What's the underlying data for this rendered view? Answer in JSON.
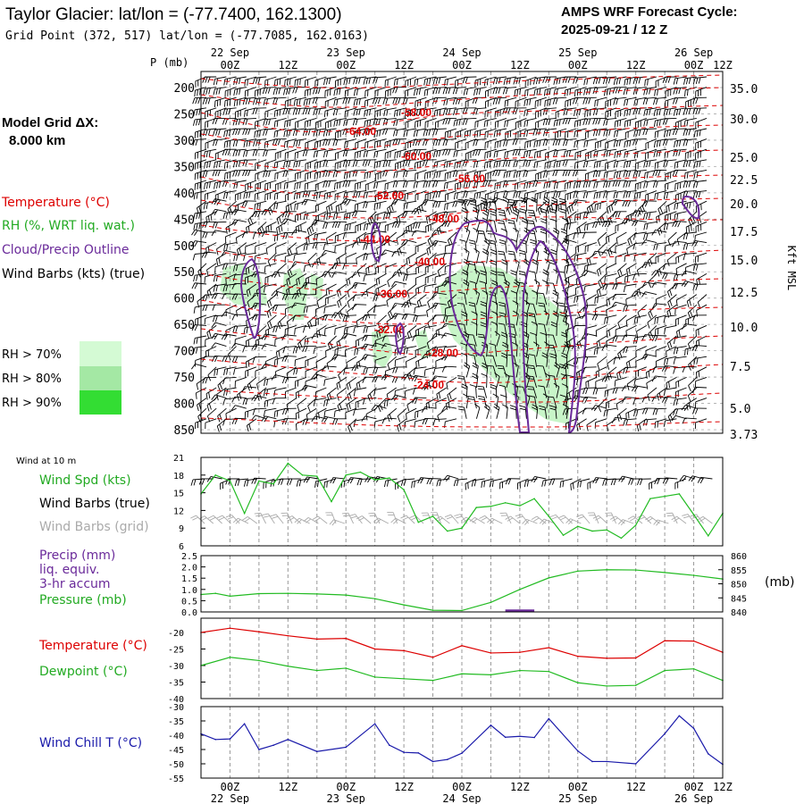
{
  "header": {
    "title": "Taylor Glacier:  lat/lon = (-77.7400, 162.1300)",
    "subtitle": "Grid Point (372, 517) lat/lon = (-77.7085, 162.0163)",
    "cycle_line1": "AMPS WRF Forecast Cycle:",
    "cycle_line2": "2025-09-21 / 12  Z"
  },
  "model_grid": {
    "label": "Model Grid ΔX:",
    "value": "8.000 km"
  },
  "legend": {
    "temperature": "Temperature (°C)",
    "rh": "RH (%, WRT liq. wat.)",
    "cloud": "Cloud/Precip Outline",
    "wind": "Wind Barbs (kts) (true)",
    "rh70": "RH > 70%",
    "rh80": "RH > 80%",
    "rh90": "RH > 90%"
  },
  "colors": {
    "temperature": "#dd0000",
    "rh_fill": "#c8f5c8",
    "rh70": "#d4fad4",
    "rh80": "#a4e8a4",
    "rh90": "#33dd33",
    "cloud": "#6a2a9a",
    "wind_speed": "#22bb22",
    "pressure": "#22bb22",
    "precip": "#6a2a9a",
    "dewpoint": "#22bb22",
    "wind_chill": "#1a1aaa",
    "grid_barbs": "#aaaaaa"
  },
  "time_axis": {
    "day_labels": [
      "22 Sep",
      "23 Sep",
      "24 Sep",
      "25 Sep",
      "26 Sep"
    ],
    "tick_labels": [
      "00Z",
      "12Z",
      "00Z",
      "12Z",
      "00Z",
      "12Z",
      "00Z",
      "12Z",
      "00Z",
      "12Z"
    ],
    "p_label": "P (mb)"
  },
  "chart_data": [
    {
      "type": "contour",
      "name": "upper-air time-height section",
      "ylabel": "P (mb)",
      "pressure_ticks": [
        "200",
        "250",
        "300",
        "350",
        "400",
        "450",
        "500",
        "550",
        "600",
        "650",
        "700",
        "750",
        "800",
        "850"
      ],
      "height_axis_label": "Kft MSL",
      "height_ticks": [
        "35.0",
        "30.0",
        "25.0",
        "22.5",
        "20.0",
        "17.5",
        "15.0",
        "12.5",
        "10.0",
        "7.5",
        "5.0",
        "3.73"
      ],
      "temperature_contour_labels": [
        "-58.00",
        "-64.00",
        "-60.00",
        "-56.00",
        "-52.00",
        "-48.00",
        "-44.00",
        "-40.00",
        "-36.00",
        "-32.00",
        "-28.00",
        "-24.00"
      ]
    },
    {
      "type": "line",
      "name": "Wind at 10 m",
      "title": "Wind at 10 m",
      "series_labels": [
        "Wind Spd (kts)",
        "Wind Barbs (true)",
        "Wind Barbs (grid)"
      ],
      "yticks": [
        "21",
        "18",
        "15",
        "12",
        "9",
        "6"
      ],
      "ylim": [
        6,
        21
      ],
      "x_hours": [
        0,
        6,
        12,
        18,
        24,
        30,
        36,
        42,
        48,
        54,
        60,
        66,
        72,
        78,
        84,
        90,
        96,
        102,
        108,
        114,
        120,
        126,
        132,
        138,
        144,
        150,
        156,
        162,
        168,
        174,
        180,
        186,
        192,
        198,
        204,
        210,
        216
      ],
      "wind_speed_kts": [
        14.8,
        18,
        17,
        11.5,
        17,
        16.5,
        20,
        18,
        17.8,
        13.5,
        18,
        18.5,
        17.2,
        17.5,
        15.5,
        10,
        11,
        8.5,
        9,
        12.5,
        12.7,
        13.3,
        12.8,
        14,
        11,
        7.8,
        9.3,
        8.5,
        8.7,
        7.3,
        9.5,
        14,
        14.4,
        14.8,
        11.3,
        7.7,
        11.5
      ]
    },
    {
      "type": "line",
      "name": "Precip and Pressure",
      "series_labels": [
        "Precip (mm)",
        "liq. equiv.",
        "3-hr accum",
        "Pressure (mb)"
      ],
      "precip_yticks": [
        "2.5",
        "2.0",
        "1.5",
        "1.0",
        "0.5",
        "0.0"
      ],
      "pressure_yticks": [
        "860",
        "855",
        "850",
        "845",
        "840"
      ],
      "pressure_unit": "(mb)",
      "x_hours": [
        0,
        6,
        12,
        24,
        36,
        48,
        60,
        72,
        84,
        96,
        108,
        120,
        132,
        144,
        156,
        168,
        180,
        192,
        204,
        216
      ],
      "pressure_mb": [
        846.2,
        846.6,
        845.6,
        846.5,
        846.6,
        846.4,
        846.0,
        844.7,
        842.5,
        840.6,
        840.5,
        843.4,
        848.0,
        852.1,
        854.5,
        855.0,
        854.9,
        854.0,
        853.0,
        851.7
      ],
      "precip_x_hours": [
        126,
        138
      ],
      "precip_mm": [
        0.05,
        0.05
      ]
    },
    {
      "type": "line",
      "name": "Temperature and Dewpoint",
      "series_labels": [
        "Temperature (°C)",
        "Dewpoint (°C)"
      ],
      "yticks": [
        "-20",
        "-25",
        "-30",
        "-35",
        "-40"
      ],
      "ylim": [
        -40,
        -15
      ],
      "x_hours": [
        0,
        12,
        24,
        36,
        48,
        60,
        72,
        84,
        96,
        108,
        120,
        132,
        144,
        156,
        168,
        180,
        192,
        204,
        216
      ],
      "temperature_c": [
        -20,
        -18.7,
        -19.8,
        -21,
        -22,
        -21.8,
        -25,
        -25.5,
        -27.5,
        -24,
        -26.2,
        -26,
        -24.6,
        -27.2,
        -27.8,
        -27.7,
        -22.5,
        -22.6,
        -26
      ],
      "dewpoint_c": [
        -30,
        -27.5,
        -28.5,
        -30.2,
        -31.5,
        -30.8,
        -33.5,
        -34,
        -34.5,
        -32.5,
        -32.8,
        -31.5,
        -31.8,
        -35.2,
        -36.2,
        -36,
        -31.5,
        -31,
        -34.5
      ]
    },
    {
      "type": "line",
      "name": "Wind Chill",
      "series_labels": [
        "Wind Chill T (°C)"
      ],
      "yticks": [
        "-30",
        "-35",
        "-40",
        "-45",
        "-50",
        "-55"
      ],
      "ylim": [
        -55,
        -30
      ],
      "x_hours": [
        0,
        6,
        12,
        18,
        24,
        30,
        36,
        48,
        60,
        72,
        78,
        84,
        90,
        96,
        102,
        108,
        120,
        126,
        132,
        138,
        144,
        156,
        162,
        168,
        180,
        192,
        198,
        204,
        210,
        216
      ],
      "wind_chill_c": [
        -39.5,
        -41.5,
        -41.3,
        -36,
        -45,
        -43.5,
        -41.5,
        -45.7,
        -44.2,
        -36,
        -43.5,
        -46,
        -46.2,
        -49.2,
        -48.5,
        -46.3,
        -36.5,
        -40.7,
        -40.4,
        -40.8,
        -34.2,
        -45.5,
        -49.2,
        -49.2,
        -50,
        -39.5,
        -33.2,
        -37.6,
        -46.5,
        -50.2
      ]
    }
  ]
}
